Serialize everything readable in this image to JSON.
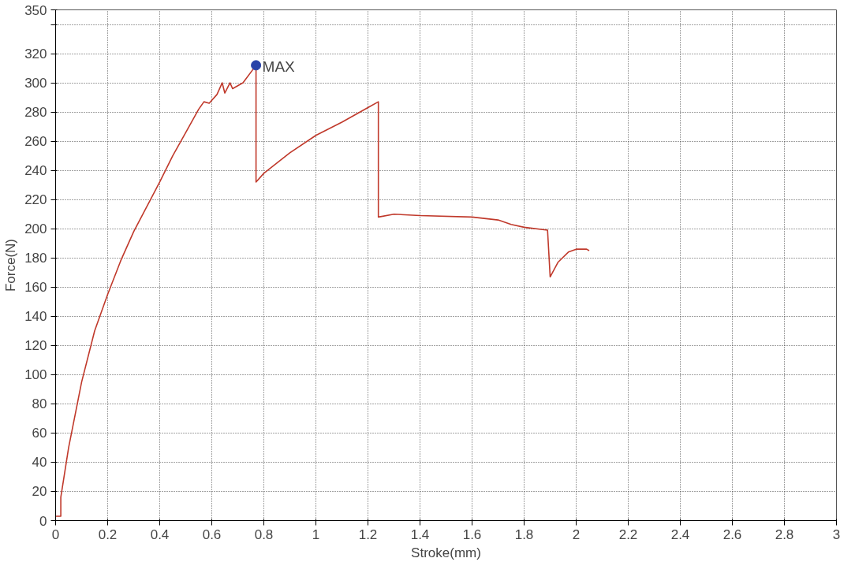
{
  "chart_data": {
    "type": "line",
    "xlabel": "Stroke(mm)",
    "ylabel": "Force(N)",
    "xlim": [
      0,
      3
    ],
    "xticks": [
      0,
      0.2,
      0.4,
      0.6,
      0.8,
      1,
      1.2,
      1.4,
      1.6,
      1.8,
      2,
      2.2,
      2.4,
      2.6,
      2.8,
      3
    ],
    "ylim": [
      0,
      350
    ],
    "yticks": [
      0,
      20,
      40,
      60,
      80,
      100,
      120,
      140,
      160,
      180,
      200,
      220,
      240,
      260,
      280,
      300,
      320,
      {
        "value": 340,
        "label": null
      },
      350
    ],
    "grid": true,
    "line_style": "solid",
    "series": [
      {
        "color": "#c0392b",
        "x": [
          0,
          0.02,
          0.02,
          0.05,
          0.1,
          0.15,
          0.2,
          0.25,
          0.3,
          0.35,
          0.4,
          0.45,
          0.5,
          0.55,
          0.57,
          0.59,
          0.62,
          0.64,
          0.65,
          0.67,
          0.68,
          0.72,
          0.77,
          0.77,
          0.8,
          0.9,
          1.0,
          1.1,
          1.2,
          1.24,
          1.24,
          1.3,
          1.4,
          1.6,
          1.7,
          1.75,
          1.8,
          1.89,
          1.9,
          1.93,
          1.97,
          2.0,
          2.04,
          2.05
        ],
        "values": [
          3,
          3,
          16,
          50,
          95,
          130,
          155,
          178,
          198,
          215,
          232,
          250,
          266,
          282,
          287,
          286,
          292,
          300,
          293,
          300,
          296,
          300,
          312,
          232,
          238,
          252,
          264,
          273,
          283,
          287,
          208,
          210,
          209,
          208,
          206,
          203,
          201,
          199,
          167,
          177,
          184,
          186,
          186,
          185
        ]
      },
      {
        "type": "scatter",
        "color": "#2a44a8",
        "marker": "circle",
        "x": [
          0.77
        ],
        "values": [
          312
        ]
      }
    ],
    "annotations": [
      {
        "text": "MAX",
        "x": 0.77,
        "y": 312
      }
    ]
  }
}
